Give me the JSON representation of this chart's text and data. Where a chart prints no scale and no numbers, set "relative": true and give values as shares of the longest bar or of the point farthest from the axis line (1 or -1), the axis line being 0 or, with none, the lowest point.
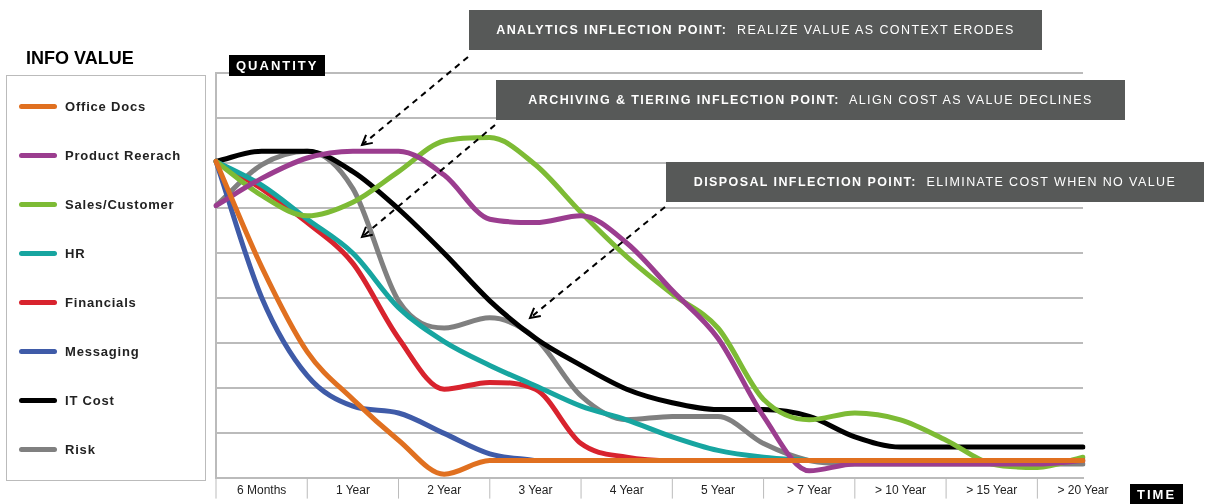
{
  "chart_data": {
    "type": "line",
    "relative": true,
    "ylabel": "QUANTITY",
    "xlabel": "TIME",
    "legend_title": "INFO VALUE",
    "legend": "left",
    "grid": "y",
    "marker": "none",
    "line_style": "solid",
    "categories": [
      null,
      "6 Months",
      null,
      "1 Year",
      null,
      "2 Year",
      null,
      "3 Year",
      null,
      "4 Year",
      null,
      "5 Year",
      null,
      "> 7 Year",
      null,
      "> 10 Year",
      null,
      "> 15 Year",
      null,
      "> 20 Year"
    ],
    "series": [
      {
        "name": "Office Docs",
        "color": "#e07020",
        "values": [
          0.93,
          0.62,
          0.37,
          0.23,
          0.11,
          0.01,
          0.05,
          0.05,
          0.05,
          0.05,
          0.05,
          0.05,
          0.05,
          0.05,
          0.05,
          0.05,
          0.05,
          0.05,
          0.05,
          0.05
        ]
      },
      {
        "name": "Product Reerach",
        "color": "#9b3d8f",
        "values": [
          0.8,
          0.88,
          0.94,
          0.96,
          0.96,
          0.89,
          0.76,
          0.75,
          0.77,
          0.69,
          0.55,
          0.41,
          0.18,
          0.02,
          0.04,
          0.04,
          0.04,
          0.04,
          0.04,
          0.05
        ]
      },
      {
        "name": "Sales/Customer",
        "color": "#7dbb35",
        "values": [
          0.93,
          0.83,
          0.77,
          0.81,
          0.9,
          0.99,
          1,
          0.92,
          0.78,
          0.65,
          0.54,
          0.44,
          0.23,
          0.17,
          0.19,
          0.17,
          0.11,
          0.04,
          0.03,
          0.06
        ]
      },
      {
        "name": "HR",
        "color": "#17a5a0",
        "values": [
          0.93,
          0.86,
          0.76,
          0.66,
          0.5,
          0.4,
          0.33,
          0.27,
          0.21,
          0.17,
          0.12,
          0.08,
          0.06,
          0.05,
          null,
          null,
          null,
          null,
          null,
          null
        ]
      },
      {
        "name": "Financials",
        "color": "#d8232e",
        "values": [
          0.93,
          0.85,
          0.75,
          0.63,
          0.41,
          0.26,
          0.28,
          0.26,
          0.1,
          0.06,
          0.05,
          0.05,
          null,
          null,
          null,
          null,
          null,
          null,
          null,
          null
        ]
      },
      {
        "name": "Messaging",
        "color": "#3f5ba8",
        "values": [
          0.93,
          0.53,
          0.3,
          0.21,
          0.19,
          0.13,
          0.07,
          0.05,
          null,
          null,
          null,
          null,
          null,
          null,
          null,
          null,
          null,
          null,
          null,
          null
        ]
      },
      {
        "name": "IT Cost",
        "color": "#000000",
        "values": [
          0.93,
          0.96,
          0.96,
          0.9,
          0.79,
          0.66,
          0.52,
          0.41,
          0.33,
          0.26,
          0.22,
          0.2,
          0.2,
          0.18,
          0.12,
          0.09,
          0.09,
          0.09,
          0.09,
          0.09
        ]
      },
      {
        "name": "Risk",
        "color": "#808080",
        "values": [
          0.8,
          0.92,
          0.96,
          0.85,
          0.52,
          0.44,
          0.47,
          0.41,
          0.24,
          0.17,
          0.18,
          0.18,
          0.1,
          0.05,
          0.04,
          0.04,
          0.04,
          0.04,
          0.04,
          0.04
        ]
      }
    ],
    "annotations": [
      "ANALYTICS INFLECTION POINT:  REALIZE VALUE AS CONTEXT ERODES",
      "ARCHIVING & TIERING INFLECTION POINT:  ALIGN COST AS VALUE DECLINES",
      "DISPOSAL INFLECTION POINT:  ELIMINATE COST WHEN NO VALUE"
    ]
  }
}
